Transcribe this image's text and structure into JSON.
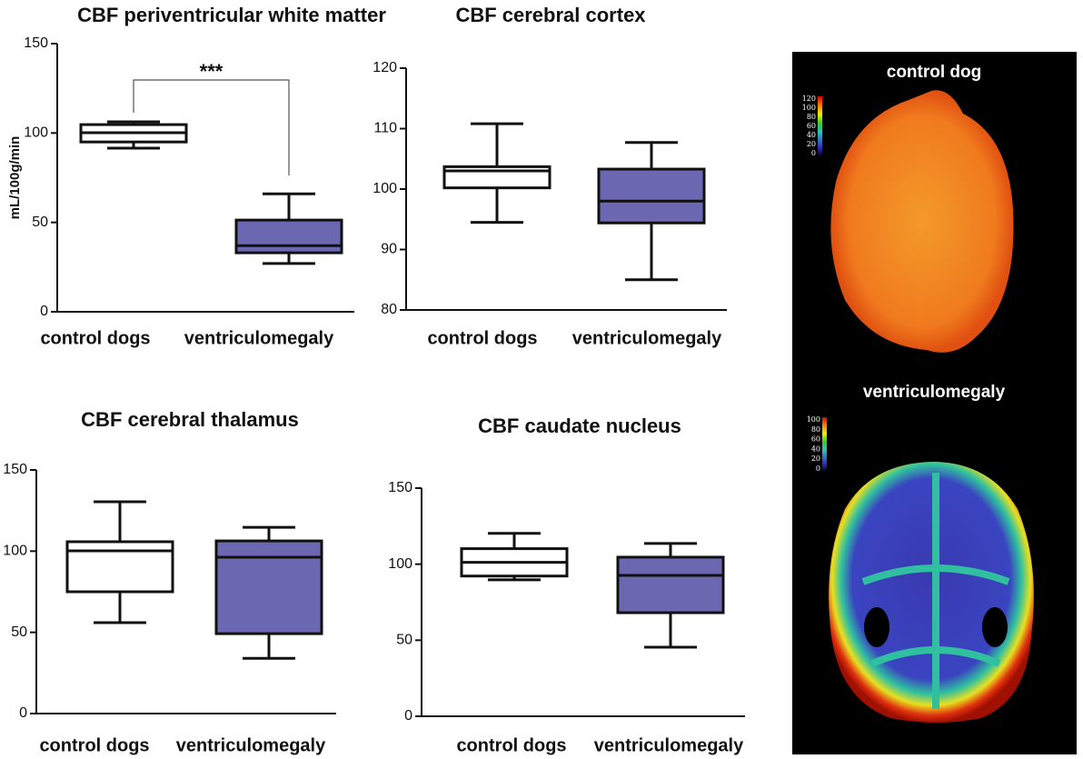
{
  "chart_data": [
    {
      "type": "box",
      "title": "CBF periventricular white matter",
      "y_label": "mL/100g/min",
      "categories": [
        "control dogs",
        "ventriculomegaly"
      ],
      "boxes": [
        {
          "min": 91.5,
          "q1": 95,
          "median": 100.2,
          "q3": 104.7,
          "max": 106.3,
          "color": "#ffffff"
        },
        {
          "min": 27,
          "q1": 33,
          "median": 37,
          "q3": 51.3,
          "max": 66,
          "color": "#6b67b0"
        }
      ],
      "annotation": "***",
      "ylim": [
        0,
        150
      ],
      "yticks": [
        0,
        50,
        100,
        150
      ]
    },
    {
      "type": "box",
      "title": "CBF cerebral cortex",
      "categories": [
        "control dogs",
        "ventriculomegaly"
      ],
      "boxes": [
        {
          "min": 94.5,
          "q1": 100.2,
          "median": 103,
          "q3": 103.7,
          "max": 110.8,
          "color": "#ffffff"
        },
        {
          "min": 85,
          "q1": 94.4,
          "median": 98,
          "q3": 103.3,
          "max": 107.7,
          "color": "#6b67b0"
        }
      ],
      "ylim": [
        80,
        120
      ],
      "yticks": [
        80,
        90,
        100,
        110,
        120
      ]
    },
    {
      "type": "box",
      "title": "CBF cerebral thalamus",
      "categories": [
        "control dogs",
        "ventriculomegaly"
      ],
      "boxes": [
        {
          "min": 56,
          "q1": 75,
          "median": 100.2,
          "q3": 105.8,
          "max": 130.4,
          "color": "#ffffff"
        },
        {
          "min": 34,
          "q1": 49.2,
          "median": 96.3,
          "q3": 106.3,
          "max": 114.7,
          "color": "#6b67b0"
        }
      ],
      "ylim": [
        0,
        150
      ],
      "yticks": [
        0,
        50,
        100,
        150
      ]
    },
    {
      "type": "box",
      "title": "CBF caudate nucleus",
      "categories": [
        "control dogs",
        "ventriculomegaly"
      ],
      "boxes": [
        {
          "min": 89.7,
          "q1": 92.2,
          "median": 101.2,
          "q3": 110.2,
          "max": 120.3,
          "color": "#ffffff"
        },
        {
          "min": 45.4,
          "q1": 68.1,
          "median": 92.6,
          "q3": 104.6,
          "max": 113.6,
          "color": "#6b67b0"
        }
      ],
      "ylim": [
        0,
        150
      ],
      "yticks": [
        0,
        50,
        100,
        150
      ]
    }
  ],
  "images": [
    {
      "label": "control dog",
      "colorbar_ticks": [
        120,
        100,
        80,
        60,
        40,
        20,
        0
      ]
    },
    {
      "label": "ventriculomegaly",
      "colorbar_ticks": [
        100,
        80,
        60,
        40,
        20,
        0
      ]
    }
  ]
}
